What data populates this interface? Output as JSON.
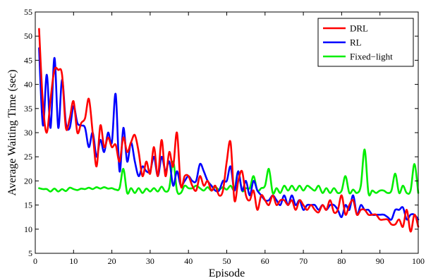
{
  "chart_data": {
    "type": "line",
    "title": "",
    "xlabel": "Episode",
    "ylabel": "Average Waiting Time (sec)",
    "xlim": [
      0,
      100
    ],
    "ylim": [
      5,
      55
    ],
    "xticks": [
      "0",
      "10",
      "20",
      "30",
      "40",
      "50",
      "60",
      "70",
      "80",
      "90",
      "100"
    ],
    "yticks": [
      "5",
      "10",
      "15",
      "20",
      "25",
      "30",
      "35",
      "40",
      "45",
      "50",
      "55"
    ],
    "grid": false,
    "legend_position": "top-right",
    "series": [
      {
        "name": "DRL",
        "color": "#ff0000",
        "x": [
          1,
          2,
          3,
          4,
          5,
          6,
          7,
          8,
          9,
          10,
          11,
          12,
          13,
          14,
          15,
          16,
          17,
          18,
          19,
          20,
          21,
          22,
          23,
          24,
          25,
          26,
          27,
          28,
          29,
          30,
          31,
          32,
          33,
          34,
          35,
          36,
          37,
          38,
          39,
          40,
          41,
          42,
          43,
          44,
          45,
          46,
          47,
          48,
          49,
          50,
          51,
          52,
          53,
          54,
          55,
          56,
          57,
          58,
          59,
          60,
          61,
          62,
          63,
          64,
          65,
          66,
          67,
          68,
          69,
          70,
          71,
          72,
          73,
          74,
          75,
          76,
          77,
          78,
          79,
          80,
          81,
          82,
          83,
          84,
          85,
          86,
          87,
          88,
          89,
          90,
          91,
          92,
          93,
          94,
          95,
          96,
          97,
          98,
          99,
          100
        ],
        "values": [
          51.5,
          36,
          30,
          37,
          43,
          43,
          42,
          31,
          33,
          36.5,
          30,
          32,
          33,
          37,
          30,
          23,
          31.5,
          27,
          29,
          27,
          27.5,
          24,
          29,
          26,
          28,
          29.5,
          26,
          21,
          24,
          21.5,
          27,
          21,
          28.5,
          21,
          26,
          23,
          30,
          19,
          21,
          21,
          19,
          18,
          21,
          19,
          20,
          18,
          19,
          17,
          18,
          24,
          28,
          16,
          20,
          22,
          17,
          16,
          18,
          14,
          17,
          16,
          15,
          17,
          15,
          16,
          16,
          15,
          16,
          14,
          16,
          15,
          14,
          15,
          14,
          13.5,
          15,
          14,
          16,
          13.5,
          14,
          17,
          13,
          15,
          16,
          13,
          14,
          14,
          13,
          13,
          13,
          12,
          12,
          12,
          11,
          11,
          12,
          10.5,
          14,
          9.5,
          13,
          10.5
        ]
      },
      {
        "name": "RL",
        "color": "#0000ff",
        "x": [
          1,
          2,
          3,
          4,
          5,
          6,
          7,
          8,
          9,
          10,
          11,
          12,
          13,
          14,
          15,
          16,
          17,
          18,
          19,
          20,
          21,
          22,
          23,
          24,
          25,
          26,
          27,
          28,
          29,
          30,
          31,
          32,
          33,
          34,
          35,
          36,
          37,
          38,
          39,
          40,
          41,
          42,
          43,
          44,
          45,
          46,
          47,
          48,
          49,
          50,
          51,
          52,
          53,
          54,
          55,
          56,
          57,
          58,
          59,
          60,
          61,
          62,
          63,
          64,
          65,
          66,
          67,
          68,
          69,
          70,
          71,
          72,
          73,
          74,
          75,
          76,
          77,
          78,
          79,
          80,
          81,
          82,
          83,
          84,
          85,
          86,
          87,
          88,
          89,
          90,
          91,
          92,
          93,
          94,
          95,
          96,
          97,
          98,
          99,
          100
        ],
        "values": [
          47.5,
          31.5,
          42,
          31,
          45.5,
          31,
          41,
          32,
          31,
          35.5,
          32,
          31.5,
          31,
          27,
          30,
          25,
          28.5,
          26,
          30,
          28,
          38,
          22,
          31,
          24,
          28,
          24,
          21,
          23,
          22,
          22,
          25,
          21,
          25,
          22,
          24,
          19,
          22,
          19,
          20,
          21,
          20,
          20,
          23.5,
          22,
          20,
          19,
          18,
          18,
          20,
          20,
          23,
          18,
          22,
          18,
          20,
          17,
          20,
          18,
          17,
          16,
          16,
          17,
          16,
          15,
          17,
          15,
          17,
          15,
          16,
          14,
          15,
          15,
          15,
          14,
          15,
          14,
          15,
          15,
          14,
          12.5,
          15,
          14,
          17,
          13,
          15,
          14,
          14,
          13,
          13,
          13,
          13,
          12.5,
          12,
          14,
          14,
          14.5,
          12,
          13,
          13,
          12
        ]
      },
      {
        "name": "Fixed−light",
        "color": "#00ee00",
        "x": [
          1,
          2,
          3,
          4,
          5,
          6,
          7,
          8,
          9,
          10,
          11,
          12,
          13,
          14,
          15,
          16,
          17,
          18,
          19,
          20,
          21,
          22,
          23,
          24,
          25,
          26,
          27,
          28,
          29,
          30,
          31,
          32,
          33,
          34,
          35,
          36,
          37,
          38,
          39,
          40,
          41,
          42,
          43,
          44,
          45,
          46,
          47,
          48,
          49,
          50,
          51,
          52,
          53,
          54,
          55,
          56,
          57,
          58,
          59,
          60,
          61,
          62,
          63,
          64,
          65,
          66,
          67,
          68,
          69,
          70,
          71,
          72,
          73,
          74,
          75,
          76,
          77,
          78,
          79,
          80,
          81,
          82,
          83,
          84,
          85,
          86,
          87,
          88,
          89,
          90,
          91,
          92,
          93,
          94,
          95,
          96,
          97,
          98,
          99,
          100
        ],
        "values": [
          18.5,
          18.3,
          18.3,
          17.8,
          18.4,
          17.8,
          18.3,
          17.9,
          18.6,
          18.3,
          18.1,
          18.4,
          18.3,
          18.6,
          18.3,
          18.7,
          18.4,
          18.7,
          18.4,
          18.5,
          18.2,
          18.5,
          22.5,
          17.5,
          18.5,
          17.5,
          18.5,
          17.5,
          18.4,
          17.8,
          18.5,
          17.8,
          18.8,
          17.8,
          18.6,
          24,
          18,
          17.5,
          19,
          18.5,
          18.5,
          19,
          18.5,
          18,
          18.7,
          18,
          18.7,
          18.2,
          18.7,
          18.2,
          19,
          18.2,
          22,
          18,
          18.5,
          18.5,
          21,
          18,
          18.5,
          19,
          22.5,
          17.5,
          18.5,
          17.5,
          19,
          18,
          19,
          18,
          19,
          18,
          19,
          18.5,
          18,
          19,
          17.5,
          18.5,
          17.5,
          18.5,
          17.5,
          18,
          21,
          17.5,
          18.2,
          17.5,
          19,
          26.5,
          17.5,
          18,
          17.5,
          18,
          18,
          17.5,
          18,
          21.5,
          17.5,
          19,
          17.5,
          18,
          23.5,
          17.5
        ]
      }
    ]
  }
}
